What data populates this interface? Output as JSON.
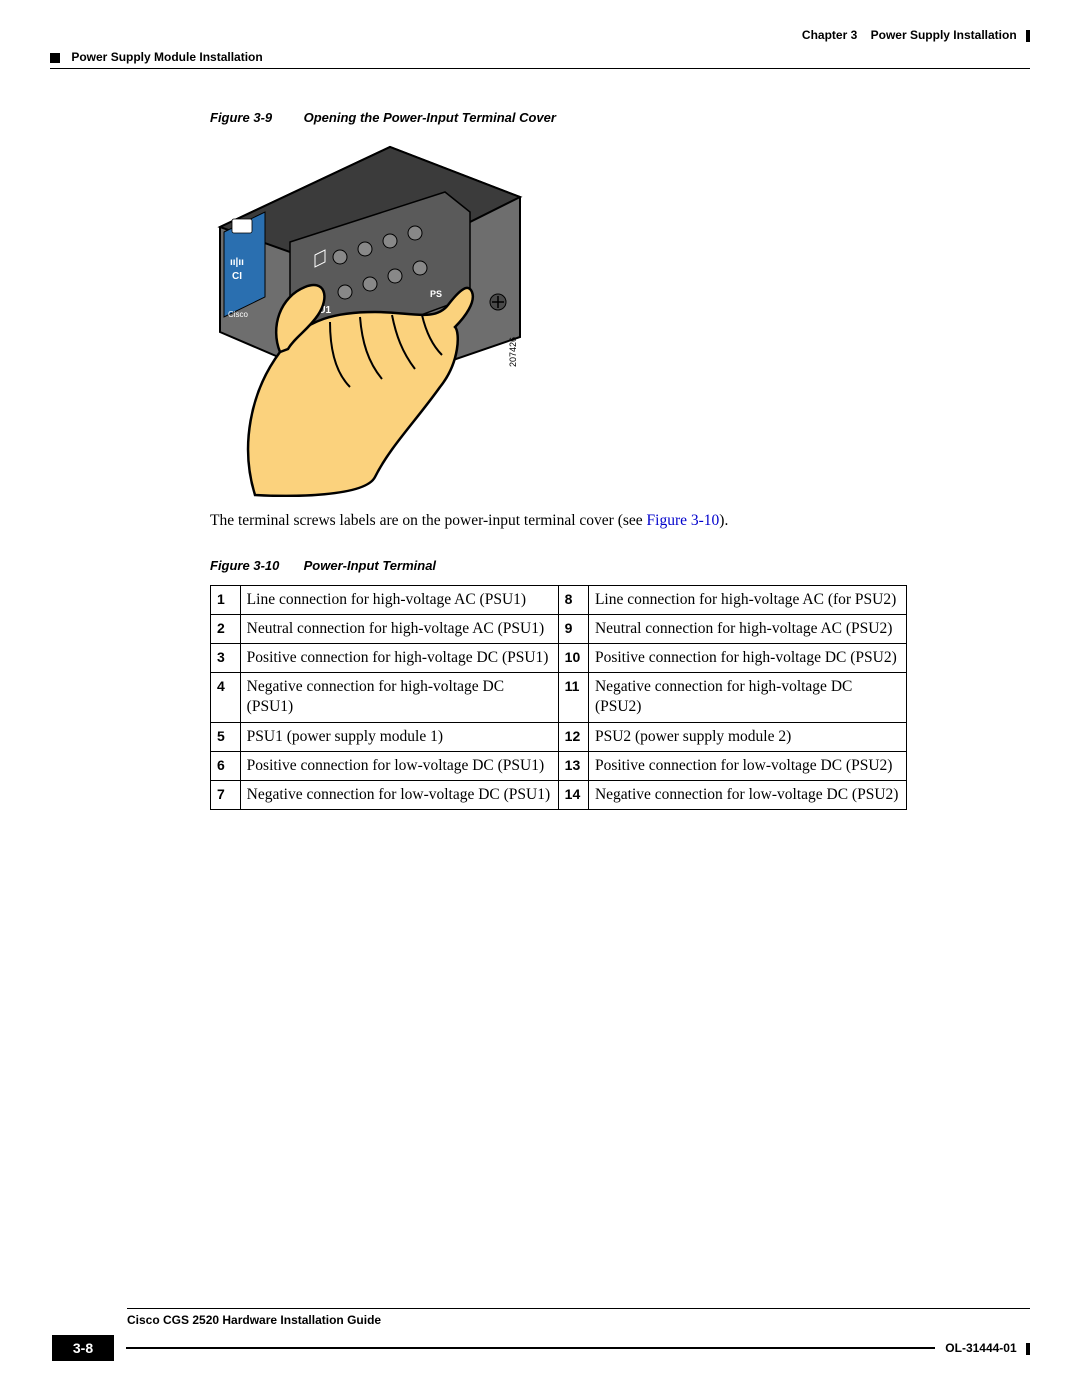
{
  "header": {
    "chapter": "Chapter 3",
    "chapter_title": "Power Supply Installation",
    "section": "Power Supply Module Installation"
  },
  "figure9": {
    "label": "Figure 3-9",
    "title": "Opening the Power-Input Terminal Cover",
    "image_annotation": "207426",
    "device_labels": {
      "cisco": "Cisco",
      "psu1": "PSU1",
      "ps": "PS"
    }
  },
  "body_text_prefix": "The terminal screws labels are on the power-input terminal cover (see ",
  "body_text_link": "Figure 3-10",
  "body_text_suffix": ").",
  "figure10": {
    "label": "Figure 3-10",
    "title": "Power-Input Terminal"
  },
  "table": {
    "rows": [
      {
        "n1": "1",
        "d1": "Line connection for high-voltage AC (PSU1)",
        "n2": "8",
        "d2": "Line connection for high-voltage AC (for PSU2)"
      },
      {
        "n1": "2",
        "d1": "Neutral connection for high-voltage AC (PSU1)",
        "n2": "9",
        "d2": "Neutral connection for high-voltage AC (PSU2)"
      },
      {
        "n1": "3",
        "d1": "Positive connection for high-voltage DC (PSU1)",
        "n2": "10",
        "d2": "Positive connection for high-voltage DC (PSU2)"
      },
      {
        "n1": "4",
        "d1": "Negative connection for high-voltage DC (PSU1)",
        "n2": "11",
        "d2": "Negative connection for high-voltage DC (PSU2)"
      },
      {
        "n1": "5",
        "d1": "PSU1 (power supply module 1)",
        "n2": "12",
        "d2": "PSU2 (power supply module 2)"
      },
      {
        "n1": "6",
        "d1": "Positive connection for low-voltage DC (PSU1)",
        "n2": "13",
        "d2": "Positive connection for low-voltage DC (PSU2)"
      },
      {
        "n1": "7",
        "d1": "Negative connection for low-voltage DC (PSU1)",
        "n2": "14",
        "d2": "Negative connection for low-voltage DC (PSU2)"
      }
    ]
  },
  "footer": {
    "guide_title": "Cisco CGS 2520 Hardware Installation Guide",
    "page": "3-8",
    "docnum": "OL-31444-01"
  },
  "colors": {
    "hand_skin": "#fbd27d",
    "hand_outline": "#000000",
    "device_body": "#6e6e6e",
    "device_dark": "#3b3b3b",
    "terminal_block": "#5a5a5a",
    "cisco_panel": "#2a6fb0",
    "link": "#0000cc"
  }
}
